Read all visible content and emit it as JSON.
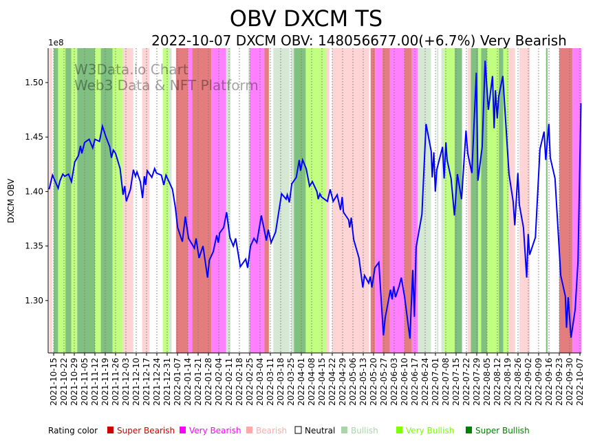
{
  "chart_data": {
    "type": "line",
    "title": "OBV DXCM TS",
    "subtitle": "2022-10-07 DXCM OBV: 148056677.00(+6.7%) Very Bearish",
    "ylabel": "DXCM OBV",
    "y_offset_label": "1e8",
    "ylim": [
      1.2518,
      1.5316
    ],
    "yticks": [
      1.3,
      1.35,
      1.4,
      1.45,
      1.5
    ],
    "ytick_labels": [
      "1.30",
      "1.35",
      "1.40",
      "1.45",
      "1.50"
    ],
    "x_start_date": "2021-10-15",
    "x_unit": "days since x_start_date",
    "xlim": [
      -3.7,
      357.9
    ],
    "xtick_labels": [
      "2021-10-15",
      "2021-10-22",
      "2021-10-29",
      "2021-11-05",
      "2021-11-12",
      "2021-11-19",
      "2021-11-26",
      "2021-12-03",
      "2021-12-10",
      "2021-12-17",
      "2021-12-24",
      "2021-12-31",
      "2022-01-07",
      "2022-01-14",
      "2022-01-21",
      "2022-01-28",
      "2022-02-04",
      "2022-02-11",
      "2022-02-18",
      "2022-02-25",
      "2022-03-04",
      "2022-03-11",
      "2022-03-18",
      "2022-03-25",
      "2022-04-01",
      "2022-04-08",
      "2022-04-15",
      "2022-04-22",
      "2022-04-29",
      "2022-05-06",
      "2022-05-13",
      "2022-05-20",
      "2022-05-27",
      "2022-06-03",
      "2022-06-10",
      "2022-06-17",
      "2022-06-24",
      "2022-07-01",
      "2022-07-08",
      "2022-07-15",
      "2022-07-22",
      "2022-07-29",
      "2022-08-05",
      "2022-08-12",
      "2022-08-19",
      "2022-08-26",
      "2022-09-02",
      "2022-09-09",
      "2022-09-16",
      "2022-09-23",
      "2022-09-30",
      "2022-10-07"
    ],
    "grid": "x dotted",
    "series": [
      {
        "name": "DXCM OBV (1e8)",
        "color": "#0000ff",
        "points": [
          [
            -3.1,
            1.402
          ],
          [
            -0.8,
            1.415
          ],
          [
            3.1,
            1.403
          ],
          [
            4.3,
            1.41
          ],
          [
            6.2,
            1.416
          ],
          [
            7.5,
            1.414
          ],
          [
            10.1,
            1.416
          ],
          [
            12.1,
            1.409
          ],
          [
            14.3,
            1.427
          ],
          [
            16.8,
            1.433
          ],
          [
            18.2,
            1.442
          ],
          [
            19.1,
            1.435
          ],
          [
            21.0,
            1.445
          ],
          [
            24.1,
            1.448
          ],
          [
            26.5,
            1.44
          ],
          [
            28.0,
            1.448
          ],
          [
            31.1,
            1.446
          ],
          [
            33.1,
            1.46
          ],
          [
            35.5,
            1.45
          ],
          [
            38.1,
            1.441
          ],
          [
            39.2,
            1.431
          ],
          [
            40.5,
            1.438
          ],
          [
            42.0,
            1.435
          ],
          [
            45.1,
            1.421
          ],
          [
            47.1,
            1.397
          ],
          [
            48.2,
            1.405
          ],
          [
            49.3,
            1.391
          ],
          [
            52.1,
            1.402
          ],
          [
            54.1,
            1.42
          ],
          [
            55.5,
            1.414
          ],
          [
            56.5,
            1.418
          ],
          [
            58.8,
            1.409
          ],
          [
            60.3,
            1.394
          ],
          [
            61.5,
            1.414
          ],
          [
            62.4,
            1.406
          ],
          [
            63.5,
            1.419
          ],
          [
            66.6,
            1.413
          ],
          [
            68.5,
            1.421
          ],
          [
            69.7,
            1.417
          ],
          [
            73.1,
            1.415
          ],
          [
            74.7,
            1.406
          ],
          [
            76.2,
            1.415
          ],
          [
            80.6,
            1.402
          ],
          [
            82.6,
            1.385
          ],
          [
            84.1,
            1.367
          ],
          [
            87.3,
            1.354
          ],
          [
            89.3,
            1.377
          ],
          [
            91.5,
            1.357
          ],
          [
            95.5,
            1.348
          ],
          [
            96.6,
            1.357
          ],
          [
            98.6,
            1.339
          ],
          [
            101.3,
            1.35
          ],
          [
            104.4,
            1.321
          ],
          [
            105.6,
            1.337
          ],
          [
            108.3,
            1.345
          ],
          [
            110.6,
            1.36
          ],
          [
            111.7,
            1.353
          ],
          [
            112.6,
            1.362
          ],
          [
            115.3,
            1.367
          ],
          [
            117.3,
            1.381
          ],
          [
            119.5,
            1.358
          ],
          [
            121.9,
            1.35
          ],
          [
            123.5,
            1.357
          ],
          [
            126.6,
            1.331
          ],
          [
            130.3,
            1.338
          ],
          [
            131.6,
            1.33
          ],
          [
            133.5,
            1.35
          ],
          [
            135.9,
            1.357
          ],
          [
            137.8,
            1.353
          ],
          [
            140.9,
            1.378
          ],
          [
            144.3,
            1.355
          ],
          [
            145.6,
            1.365
          ],
          [
            147.5,
            1.353
          ],
          [
            150.6,
            1.363
          ],
          [
            154.6,
            1.398
          ],
          [
            157.7,
            1.393
          ],
          [
            158.5,
            1.397
          ],
          [
            159.9,
            1.39
          ],
          [
            161.5,
            1.407
          ],
          [
            164.6,
            1.413
          ],
          [
            166.6,
            1.429
          ],
          [
            167.5,
            1.419
          ],
          [
            168.9,
            1.429
          ],
          [
            171.3,
            1.421
          ],
          [
            173.6,
            1.405
          ],
          [
            175.5,
            1.409
          ],
          [
            178.6,
            1.4
          ],
          [
            179.5,
            1.393
          ],
          [
            180.6,
            1.398
          ],
          [
            181.7,
            1.395
          ],
          [
            185.7,
            1.391
          ],
          [
            187.6,
            1.402
          ],
          [
            189.6,
            1.391
          ],
          [
            192.3,
            1.397
          ],
          [
            194.6,
            1.383
          ],
          [
            195.7,
            1.395
          ],
          [
            196.6,
            1.381
          ],
          [
            200.1,
            1.374
          ],
          [
            200.8,
            1.367
          ],
          [
            201.9,
            1.376
          ],
          [
            203.5,
            1.356
          ],
          [
            207.1,
            1.339
          ],
          [
            209.7,
            1.312
          ],
          [
            210.9,
            1.323
          ],
          [
            213.7,
            1.316
          ],
          [
            214.8,
            1.322
          ],
          [
            215.9,
            1.312
          ],
          [
            217.9,
            1.33
          ],
          [
            220.6,
            1.335
          ],
          [
            223.7,
            1.268
          ],
          [
            224.9,
            1.284
          ],
          [
            228.5,
            1.31
          ],
          [
            229.6,
            1.301
          ],
          [
            230.7,
            1.313
          ],
          [
            231.9,
            1.303
          ],
          [
            234.3,
            1.313
          ],
          [
            235.8,
            1.321
          ],
          [
            238.1,
            1.303
          ],
          [
            241.7,
            1.265
          ],
          [
            243.6,
            1.328
          ],
          [
            244.7,
            1.285
          ],
          [
            245.9,
            1.349
          ],
          [
            249.8,
            1.379
          ],
          [
            252.6,
            1.462
          ],
          [
            256.1,
            1.437
          ],
          [
            256.8,
            1.413
          ],
          [
            257.9,
            1.436
          ],
          [
            258.9,
            1.4
          ],
          [
            259.9,
            1.42
          ],
          [
            263.8,
            1.441
          ],
          [
            264.9,
            1.412
          ],
          [
            266.1,
            1.445
          ],
          [
            266.9,
            1.429
          ],
          [
            269.6,
            1.412
          ],
          [
            271.9,
            1.378
          ],
          [
            273.9,
            1.416
          ],
          [
            276.7,
            1.393
          ],
          [
            279.7,
            1.456
          ],
          [
            280.9,
            1.435
          ],
          [
            283.7,
            1.417
          ],
          [
            286.7,
            1.509
          ],
          [
            287.8,
            1.41
          ],
          [
            290.7,
            1.441
          ],
          [
            292.7,
            1.52
          ],
          [
            294.9,
            1.475
          ],
          [
            297.7,
            1.506
          ],
          [
            298.8,
            1.458
          ],
          [
            299.7,
            1.493
          ],
          [
            300.9,
            1.467
          ],
          [
            301.9,
            1.487
          ],
          [
            304.7,
            1.506
          ],
          [
            308.9,
            1.416
          ],
          [
            311.7,
            1.391
          ],
          [
            312.8,
            1.369
          ],
          [
            314.9,
            1.417
          ],
          [
            315.9,
            1.388
          ],
          [
            318.7,
            1.367
          ],
          [
            320.9,
            1.321
          ],
          [
            321.9,
            1.361
          ],
          [
            322.9,
            1.342
          ],
          [
            326.8,
            1.358
          ],
          [
            329.9,
            1.439
          ],
          [
            332.7,
            1.455
          ],
          [
            333.8,
            1.429
          ],
          [
            335.9,
            1.462
          ],
          [
            336.9,
            1.431
          ],
          [
            340.1,
            1.412
          ],
          [
            344.0,
            1.323
          ],
          [
            347.1,
            1.304
          ],
          [
            347.9,
            1.275
          ],
          [
            349.0,
            1.303
          ],
          [
            351.0,
            1.266
          ],
          [
            353.8,
            1.292
          ],
          [
            355.7,
            1.336
          ],
          [
            357.7,
            1.481
          ]
        ]
      }
    ],
    "rating_bands": [
      [
        -3,
        -1,
        "Be"
      ],
      [
        0,
        3,
        "SBu"
      ],
      [
        3,
        8,
        "VBu"
      ],
      [
        8,
        12,
        "SBu"
      ],
      [
        12,
        16,
        "VBu"
      ],
      [
        16,
        28,
        "SBu"
      ],
      [
        28,
        32,
        "VBu"
      ],
      [
        32,
        40,
        "SBu"
      ],
      [
        40,
        47,
        "VBu"
      ],
      [
        47,
        54,
        "Be"
      ],
      [
        60,
        65,
        "Be"
      ],
      [
        74,
        78,
        "VBu"
      ],
      [
        78,
        80,
        "Bu"
      ],
      [
        83,
        91,
        "SBe"
      ],
      [
        91,
        94,
        "VBe"
      ],
      [
        94,
        107,
        "SBe"
      ],
      [
        107,
        117,
        "VBe"
      ],
      [
        117,
        120,
        "Bu"
      ],
      [
        132,
        133,
        "Bu"
      ],
      [
        133,
        143,
        "VBe"
      ],
      [
        143,
        146,
        "SBe"
      ],
      [
        149,
        160,
        "Bu"
      ],
      [
        161,
        163,
        "Bu"
      ],
      [
        163,
        171,
        "SBu"
      ],
      [
        171,
        185,
        "VBu"
      ],
      [
        185,
        187,
        "Be"
      ],
      [
        189,
        214,
        "Be"
      ],
      [
        215,
        218,
        "SBe"
      ],
      [
        218,
        223,
        "VBe"
      ],
      [
        223,
        228,
        "SBe"
      ],
      [
        228,
        238,
        "VBe"
      ],
      [
        238,
        243,
        "SBe"
      ],
      [
        243,
        247,
        "VBe"
      ],
      [
        247,
        256,
        "Bu"
      ],
      [
        260,
        261,
        "Bu"
      ],
      [
        263,
        265,
        "Bu"
      ],
      [
        265,
        272,
        "VBu"
      ],
      [
        272,
        277,
        "SBu"
      ],
      [
        281,
        283,
        "Be"
      ],
      [
        283,
        288,
        "SBu"
      ],
      [
        288,
        290,
        "VBu"
      ],
      [
        290,
        294,
        "SBu"
      ],
      [
        294,
        302,
        "VBu"
      ],
      [
        302,
        305,
        "SBu"
      ],
      [
        305,
        309,
        "VBu"
      ],
      [
        309,
        313,
        "Be"
      ],
      [
        316,
        323,
        "Be"
      ],
      [
        334,
        335,
        "SBu"
      ],
      [
        343,
        352,
        "SBe"
      ],
      [
        352,
        358,
        "VBe"
      ]
    ],
    "band_colors": {
      "SBe": "#e47e7e",
      "VBe": "#ff80ff",
      "Be": "#ffd4d4",
      "Bu": "#d4e8d4",
      "VBu": "#c0ff80",
      "SBu": "#80c080"
    },
    "legend": {
      "placement": "bottom",
      "title": "Rating color",
      "items": [
        {
          "label": "Super Bearish",
          "color": "#cc0000"
        },
        {
          "label": "Very Bearish",
          "color": "#ff00ff"
        },
        {
          "label": "Bearish",
          "color": "#ffaaaa"
        },
        {
          "label": "Neutral",
          "color": "#ffffff"
        },
        {
          "label": "Bullish",
          "color": "#aad4aa"
        },
        {
          "label": "Very Bullish",
          "color": "#80ff00"
        },
        {
          "label": "Super Bullish",
          "color": "#008000"
        }
      ]
    },
    "watermark": [
      "W3Data.io Chart",
      "Web3 Data & NFT Platform"
    ]
  }
}
